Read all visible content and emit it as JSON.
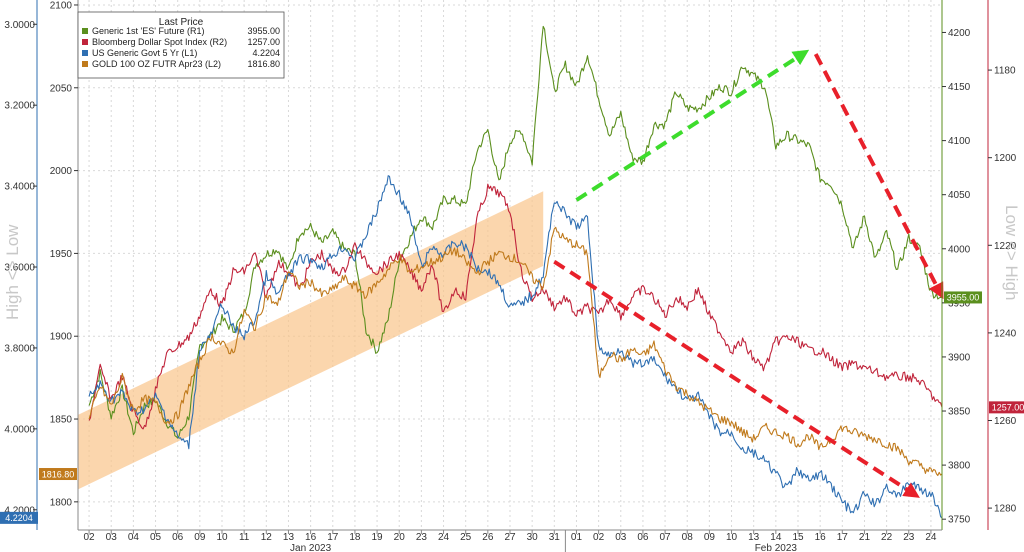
{
  "chart_data": {
    "type": "line",
    "legend": {
      "title": "Last Price",
      "placement": "top-left",
      "entries": [
        {
          "key": "es",
          "label": "Generic 1st 'ES' Future  (R1)",
          "value": "3955.00",
          "color": "#5b8f1e"
        },
        {
          "key": "dollar",
          "label": "Bloomberg Dollar Spot Index  (R2)",
          "value": "1257.00",
          "color": "#c0243b"
        },
        {
          "key": "yield5",
          "label": "US Generic Govt 5 Yr  (L1)",
          "value": "4.2204",
          "color": "#2f6fb2"
        },
        {
          "key": "gold",
          "label": "GOLD 100 OZ FUTR Apr23  (L2)",
          "value": "1816.80",
          "color": "#c07a1c"
        }
      ]
    },
    "axes": {
      "left_outer": {
        "series": "yield5",
        "inverted": true,
        "ylim": [
          4.25,
          2.94
        ],
        "ticks": [
          "3.0000",
          "3.2000",
          "3.4000",
          "3.6000",
          "3.8000",
          "4.0000",
          "4.2000"
        ],
        "tick_values": [
          3.0,
          3.2,
          3.4,
          3.6,
          3.8,
          4.0,
          4.2
        ],
        "color": "#2f6fb2"
      },
      "left_inner": {
        "series": "gold",
        "inverted": false,
        "ylim": [
          1783,
          2103
        ],
        "ticks": [
          "1800",
          "1850",
          "1900",
          "1950",
          "2000",
          "2050",
          "2100"
        ],
        "tick_values": [
          1800,
          1850,
          1900,
          1950,
          2000,
          2050,
          2100
        ],
        "color": "#333333"
      },
      "right_inner": {
        "series": "es",
        "inverted": false,
        "ylim": [
          3740,
          4230
        ],
        "ticks": [
          "3750",
          "3800",
          "3850",
          "3900",
          "3950",
          "4000",
          "4050",
          "4100",
          "4150",
          "4200"
        ],
        "tick_values": [
          3750,
          3800,
          3850,
          3900,
          3950,
          4000,
          4050,
          4100,
          4150,
          4200
        ],
        "color": "#5b8f1e"
      },
      "right_outer": {
        "series": "dollar",
        "inverted": true,
        "ylim": [
          1285,
          1164
        ],
        "ticks": [
          "1180",
          "1200",
          "1220",
          "1240",
          "1260",
          "1280"
        ],
        "tick_values": [
          1180,
          1200,
          1220,
          1240,
          1260,
          1280
        ],
        "color": "#c0243b"
      }
    },
    "side_labels": {
      "left": "High <> Low",
      "right": "Low <> High"
    },
    "x_ticks": [
      "02",
      "03",
      "04",
      "05",
      "06",
      "09",
      "10",
      "11",
      "12",
      "13",
      "16",
      "17",
      "18",
      "19",
      "20",
      "23",
      "24",
      "25",
      "26",
      "27",
      "30",
      "31",
      "01",
      "02",
      "03",
      "06",
      "07",
      "08",
      "09",
      "10",
      "13",
      "14",
      "15",
      "16",
      "17",
      "21",
      "22",
      "23",
      "24"
    ],
    "month_labels": [
      {
        "label": "Jan 2023",
        "index": 10
      },
      {
        "label": "Feb 2023",
        "index": 31
      }
    ],
    "month_split_index": 21.5,
    "series": [
      {
        "key": "es",
        "name": "Generic 1st 'ES' Future  (R1)",
        "axis": "right_inner",
        "color": "#5b8f1e",
        "x": [
          0,
          0.5,
          1,
          1.5,
          2,
          2.5,
          3,
          3.5,
          4,
          4.5,
          5,
          5.5,
          6,
          6.5,
          7,
          7.5,
          8,
          8.5,
          9,
          9.5,
          10,
          10.5,
          11,
          11.5,
          12,
          12.5,
          13,
          13.5,
          14,
          14.5,
          15,
          15.5,
          16,
          16.5,
          17,
          17.5,
          18,
          18.5,
          19,
          19.5,
          20,
          20.5,
          21,
          21.5,
          22,
          22.5,
          23,
          23.5,
          24,
          24.5,
          25,
          25.5,
          26,
          26.5,
          27,
          27.5,
          28,
          28.5,
          29,
          29.5,
          30,
          30.5,
          31,
          31.5,
          32,
          32.5,
          33,
          33.5,
          34,
          34.5,
          35,
          35.5,
          36,
          36.5,
          37,
          37.5,
          38,
          38.5
        ],
        "values": [
          3855,
          3885,
          3845,
          3870,
          3830,
          3855,
          3860,
          3840,
          3825,
          3845,
          3910,
          3920,
          3935,
          3925,
          3940,
          3985,
          3995,
          4000,
          3980,
          4015,
          4020,
          4005,
          4015,
          4000,
          3995,
          3925,
          3905,
          3935,
          3990,
          4010,
          4030,
          4020,
          4045,
          4045,
          4040,
          4090,
          4110,
          4060,
          4100,
          4110,
          4080,
          4210,
          4145,
          4170,
          4150,
          4180,
          4140,
          4105,
          4125,
          4085,
          4080,
          4115,
          4115,
          4145,
          4130,
          4130,
          4140,
          4150,
          4145,
          4170,
          4160,
          4150,
          4095,
          4105,
          4100,
          4095,
          4065,
          4060,
          4040,
          4000,
          4030,
          3990,
          4015,
          3980,
          4010,
          4000,
          3960,
          3955
        ]
      },
      {
        "key": "dollar",
        "name": "Bloomberg Dollar Spot Index  (R2)",
        "axis": "right_outer",
        "color": "#c0243b",
        "x": [
          0,
          0.5,
          1,
          1.5,
          2,
          2.5,
          3,
          3.5,
          4,
          4.5,
          5,
          5.5,
          6,
          6.5,
          7,
          7.5,
          8,
          8.5,
          9,
          9.5,
          10,
          10.5,
          11,
          11.5,
          12,
          12.5,
          13,
          13.5,
          14,
          14.5,
          15,
          15.5,
          16,
          16.5,
          17,
          17.5,
          18,
          18.5,
          19,
          19.5,
          20,
          20.5,
          21,
          21.5,
          22,
          22.5,
          23,
          23.5,
          24,
          24.5,
          25,
          25.5,
          26,
          26.5,
          27,
          27.5,
          28,
          28.5,
          29,
          29.5,
          30,
          30.5,
          31,
          31.5,
          32,
          32.5,
          33,
          33.5,
          34,
          34.5,
          35,
          35.5,
          36,
          36.5,
          37,
          37.5,
          38,
          38.5
        ],
        "values": [
          1260,
          1248,
          1255,
          1250,
          1258,
          1262,
          1253,
          1245,
          1243,
          1241,
          1236,
          1230,
          1234,
          1226,
          1226,
          1222,
          1232,
          1224,
          1226,
          1230,
          1224,
          1222,
          1226,
          1226,
          1220,
          1224,
          1226,
          1224,
          1222,
          1226,
          1230,
          1224,
          1236,
          1230,
          1232,
          1214,
          1207,
          1208,
          1212,
          1226,
          1232,
          1230,
          1234,
          1232,
          1236,
          1234,
          1236,
          1232,
          1236,
          1232,
          1230,
          1232,
          1236,
          1232,
          1234,
          1230,
          1236,
          1240,
          1244,
          1242,
          1246,
          1248,
          1242,
          1241,
          1242,
          1244,
          1244,
          1246,
          1248,
          1247,
          1248,
          1249,
          1250,
          1250,
          1250,
          1251,
          1254,
          1257
        ]
      },
      {
        "key": "yield5",
        "name": "US Generic Govt 5 Yr  (L1)",
        "axis": "left_outer",
        "color": "#2f6fb2",
        "x": [
          0,
          0.5,
          1,
          1.5,
          2,
          2.5,
          3,
          3.5,
          4,
          4.5,
          5,
          5.5,
          6,
          6.5,
          7,
          7.5,
          8,
          8.5,
          9,
          9.5,
          10,
          10.5,
          11,
          11.5,
          12,
          12.5,
          13,
          13.5,
          14,
          14.5,
          15,
          15.5,
          16,
          16.5,
          17,
          17.5,
          18,
          18.5,
          19,
          19.5,
          20,
          20.5,
          21,
          21.5,
          22,
          22.5,
          23,
          23.5,
          24,
          24.5,
          25,
          25.5,
          26,
          26.5,
          27,
          27.5,
          28,
          28.5,
          29,
          29.5,
          30,
          30.5,
          31,
          31.5,
          32,
          32.5,
          33,
          33.5,
          34,
          34.5,
          35,
          35.5,
          36,
          36.5,
          37,
          37.5,
          38,
          38.5
        ],
        "values": [
          3.92,
          3.89,
          3.93,
          3.91,
          3.96,
          3.95,
          3.92,
          3.97,
          4.02,
          4.04,
          3.8,
          3.77,
          3.69,
          3.75,
          3.77,
          3.73,
          3.62,
          3.67,
          3.62,
          3.58,
          3.58,
          3.6,
          3.57,
          3.55,
          3.58,
          3.52,
          3.46,
          3.38,
          3.42,
          3.48,
          3.6,
          3.55,
          3.57,
          3.54,
          3.55,
          3.6,
          3.61,
          3.64,
          3.7,
          3.69,
          3.67,
          3.62,
          3.43,
          3.47,
          3.5,
          3.48,
          3.8,
          3.82,
          3.8,
          3.84,
          3.84,
          3.83,
          3.87,
          3.9,
          3.93,
          3.92,
          3.97,
          4.01,
          4.01,
          4.05,
          4.06,
          4.08,
          4.11,
          4.15,
          4.1,
          4.13,
          4.11,
          4.14,
          4.18,
          4.21,
          4.16,
          4.19,
          4.14,
          4.17,
          4.13,
          4.15,
          4.16,
          4.22
        ]
      },
      {
        "key": "gold",
        "name": "GOLD 100 OZ FUTR Apr23  (L2)",
        "axis": "left_inner",
        "color": "#c07a1c",
        "x": [
          0,
          0.5,
          1,
          1.5,
          2,
          2.5,
          3,
          3.5,
          4,
          4.5,
          5,
          5.5,
          6,
          6.5,
          7,
          7.5,
          8,
          8.5,
          9,
          9.5,
          10,
          10.5,
          11,
          11.5,
          12,
          12.5,
          13,
          13.5,
          14,
          14.5,
          15,
          15.5,
          16,
          16.5,
          17,
          17.5,
          18,
          18.5,
          19,
          19.5,
          20,
          20.5,
          21,
          21.5,
          22,
          22.5,
          23,
          23.5,
          24,
          24.5,
          25,
          25.5,
          26,
          26.5,
          27,
          27.5,
          28,
          28.5,
          29,
          29.5,
          30,
          30.5,
          31,
          31.5,
          32,
          32.5,
          33,
          33.5,
          34,
          34.5,
          35,
          35.5,
          36,
          36.5,
          37,
          37.5,
          38,
          38.5
        ],
        "values": [
          1850,
          1870,
          1858,
          1875,
          1855,
          1862,
          1860,
          1848,
          1852,
          1870,
          1885,
          1900,
          1895,
          1890,
          1915,
          1905,
          1925,
          1918,
          1940,
          1930,
          1933,
          1925,
          1928,
          1935,
          1930,
          1925,
          1932,
          1940,
          1948,
          1938,
          1942,
          1945,
          1948,
          1952,
          1945,
          1938,
          1945,
          1950,
          1948,
          1945,
          1935,
          1930,
          1965,
          1958,
          1955,
          1950,
          1875,
          1890,
          1885,
          1892,
          1888,
          1895,
          1880,
          1870,
          1865,
          1860,
          1855,
          1850,
          1848,
          1842,
          1838,
          1845,
          1842,
          1840,
          1835,
          1840,
          1832,
          1838,
          1845,
          1842,
          1840,
          1838,
          1835,
          1832,
          1825,
          1822,
          1818,
          1816.8
        ]
      }
    ],
    "last_value_badges": [
      {
        "series": "es",
        "value": "3955.00",
        "side": "right",
        "color": "#5b8f1e"
      },
      {
        "series": "dollar",
        "value": "1257.00",
        "side": "right",
        "color": "#c0243b"
      },
      {
        "series": "gold",
        "value": "1816.80",
        "side": "left",
        "color": "#c07a1c"
      },
      {
        "series": "yield5",
        "value": "4.2204",
        "side": "left",
        "color": "#2f6fb2"
      }
    ],
    "annotations": [
      {
        "kind": "band",
        "color": "#f9c48a",
        "from": {
          "x": -0.5,
          "gold": 1830
        },
        "to": {
          "x": 20.5,
          "gold": 1965
        },
        "thickness_gold": 45
      },
      {
        "kind": "arrow",
        "color": "#3ddc2c",
        "from": {
          "x": 22,
          "es": 4045
        },
        "to": {
          "x": 32.2,
          "es": 4180
        }
      },
      {
        "kind": "arrow",
        "color": "#e8202a",
        "from": {
          "x": 32.8,
          "es": 4180
        },
        "to": {
          "x": 38.4,
          "es": 3960
        }
      },
      {
        "kind": "arrow",
        "color": "#e8202a",
        "from": {
          "x": 21,
          "gold": 1945
        },
        "to": {
          "x": 37.2,
          "gold": 1805
        }
      }
    ],
    "grid": true
  }
}
